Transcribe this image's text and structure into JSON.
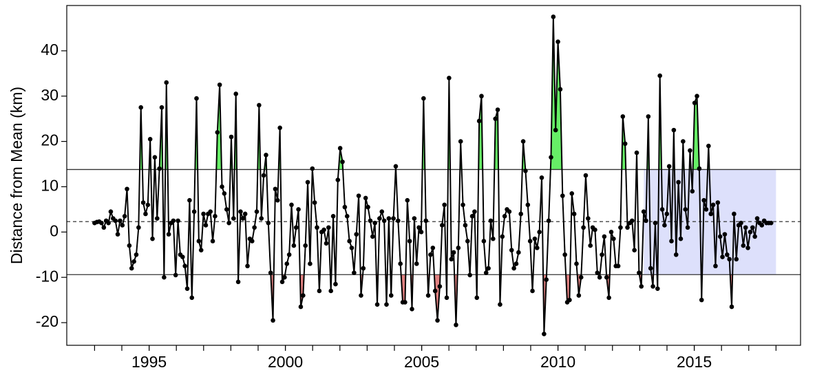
{
  "chart_data": {
    "type": "line",
    "ylabel": "Distance from Mean (km)",
    "xlim": [
      1991.98,
      2018.9
    ],
    "ylim": [
      -25,
      50
    ],
    "xticks": [
      1995,
      2000,
      2005,
      2010,
      2015
    ],
    "xminorticks": [
      1993,
      1994,
      1995,
      1996,
      1997,
      1998,
      1999,
      2000,
      2001,
      2002,
      2003,
      2004,
      2005,
      2006,
      2007,
      2008,
      2009,
      2010,
      2011,
      2012,
      2013,
      2014,
      2015,
      2016,
      2017,
      2018
    ],
    "yticks": [
      -20,
      -10,
      0,
      10,
      20,
      30,
      40
    ],
    "reference_lines": [
      {
        "value": 13.8,
        "style": "solid",
        "fill_beyond": "above",
        "fill_color": "#66ee66"
      },
      {
        "value": 2.3,
        "style": "dashed"
      },
      {
        "value": -9.4,
        "style": "solid",
        "fill_beyond": "below",
        "fill_color": "#e08080"
      }
    ],
    "shaded_region": {
      "x": [
        2013.15,
        2018.0
      ],
      "y": [
        -9.4,
        13.8
      ],
      "color": "#dde0fb"
    },
    "x": [
      1993,
      1993.085,
      1993.17,
      1993.255,
      1993.34,
      1993.425,
      1993.51,
      1993.595,
      1993.68,
      1993.765,
      1993.85,
      1993.935,
      1994.02,
      1994.105,
      1994.19,
      1994.275,
      1994.36,
      1994.445,
      1994.53,
      1994.615,
      1994.7,
      1994.785,
      1994.87,
      1994.955,
      1995.04,
      1995.125,
      1995.21,
      1995.295,
      1995.38,
      1995.465,
      1995.55,
      1995.635,
      1995.72,
      1995.805,
      1995.89,
      1995.975,
      1996.06,
      1996.145,
      1996.23,
      1996.315,
      1996.4,
      1996.485,
      1996.57,
      1996.655,
      1996.74,
      1996.825,
      1996.91,
      1996.995,
      1997.08,
      1997.165,
      1997.25,
      1997.335,
      1997.42,
      1997.505,
      1997.59,
      1997.675,
      1997.76,
      1997.845,
      1997.93,
      1998.015,
      1998.1,
      1998.185,
      1998.27,
      1998.355,
      1998.44,
      1998.525,
      1998.61,
      1998.695,
      1998.78,
      1998.865,
      1998.95,
      1999.035,
      1999.12,
      1999.205,
      1999.29,
      1999.375,
      1999.46,
      1999.545,
      1999.63,
      1999.715,
      1999.8,
      1999.885,
      1999.97,
      2000.055,
      2000.14,
      2000.225,
      2000.31,
      2000.395,
      2000.48,
      2000.565,
      2000.65,
      2000.735,
      2000.82,
      2000.905,
      2000.99,
      2001.075,
      2001.16,
      2001.245,
      2001.33,
      2001.415,
      2001.5,
      2001.585,
      2001.67,
      2001.755,
      2001.84,
      2001.925,
      2002.01,
      2002.095,
      2002.18,
      2002.265,
      2002.35,
      2002.435,
      2002.52,
      2002.605,
      2002.69,
      2002.775,
      2002.86,
      2002.945,
      2003.03,
      2003.115,
      2003.2,
      2003.285,
      2003.37,
      2003.455,
      2003.54,
      2003.625,
      2003.71,
      2003.795,
      2003.88,
      2003.965,
      2004.05,
      2004.135,
      2004.22,
      2004.305,
      2004.39,
      2004.475,
      2004.56,
      2004.645,
      2004.73,
      2004.815,
      2004.9,
      2004.985,
      2005.07,
      2005.155,
      2005.24,
      2005.325,
      2005.41,
      2005.495,
      2005.58,
      2005.665,
      2005.75,
      2005.835,
      2005.92,
      2006.005,
      2006.09,
      2006.175,
      2006.26,
      2006.345,
      2006.43,
      2006.515,
      2006.6,
      2006.685,
      2006.77,
      2006.855,
      2006.94,
      2007.025,
      2007.11,
      2007.195,
      2007.28,
      2007.365,
      2007.45,
      2007.535,
      2007.62,
      2007.705,
      2007.79,
      2007.875,
      2007.96,
      2008.045,
      2008.13,
      2008.215,
      2008.3,
      2008.385,
      2008.47,
      2008.555,
      2008.64,
      2008.725,
      2008.81,
      2008.895,
      2008.98,
      2009.065,
      2009.15,
      2009.235,
      2009.32,
      2009.405,
      2009.49,
      2009.575,
      2009.66,
      2009.745,
      2009.83,
      2009.915,
      2010,
      2010.085,
      2010.17,
      2010.255,
      2010.34,
      2010.425,
      2010.51,
      2010.595,
      2010.68,
      2010.765,
      2010.85,
      2010.935,
      2011.02,
      2011.105,
      2011.19,
      2011.275,
      2011.36,
      2011.445,
      2011.53,
      2011.615,
      2011.7,
      2011.785,
      2011.87,
      2011.955,
      2012.04,
      2012.125,
      2012.21,
      2012.295,
      2012.38,
      2012.465,
      2012.55,
      2012.635,
      2012.72,
      2012.805,
      2012.89,
      2012.975,
      2013.06,
      2013.145,
      2013.23,
      2013.315,
      2013.4,
      2013.485,
      2013.57,
      2013.655,
      2013.74,
      2013.825,
      2013.91,
      2013.995,
      2014.08,
      2014.165,
      2014.25,
      2014.335,
      2014.42,
      2014.505,
      2014.59,
      2014.675,
      2014.76,
      2014.845,
      2014.93,
      2015.015,
      2015.1,
      2015.185,
      2015.27,
      2015.355,
      2015.44,
      2015.525,
      2015.61,
      2015.695,
      2015.78,
      2015.865,
      2015.95,
      2016.035,
      2016.12,
      2016.205,
      2016.29,
      2016.375,
      2016.46,
      2016.545,
      2016.63,
      2016.715,
      2016.8,
      2016.885,
      2016.97,
      2017.055,
      2017.14,
      2017.225,
      2017.31,
      2017.395,
      2017.48,
      2017.565,
      2017.65,
      2017.735,
      2017.82
    ],
    "series": [
      {
        "color": "#000000",
        "values": [
          2,
          2.2,
          2.3,
          2,
          1,
          2.5,
          2,
          4.5,
          3,
          2.5,
          -0.5,
          2.5,
          1.5,
          3.5,
          9.5,
          -3,
          -8,
          -6.5,
          -5,
          1,
          27.5,
          6.5,
          4,
          6,
          20.5,
          -1.5,
          16.5,
          3,
          14,
          27.5,
          -10,
          33,
          -0.5,
          2,
          2.5,
          -9.5,
          2.5,
          -5,
          -5.5,
          -7.5,
          -12.5,
          7,
          -14.5,
          4.5,
          29.5,
          -2,
          -4,
          4,
          1.5,
          4,
          4.5,
          -2,
          3.5,
          22,
          32.5,
          10,
          8.5,
          5,
          2,
          21,
          3,
          30.5,
          -11,
          4.5,
          3,
          4,
          -7.5,
          -1.5,
          -2,
          1,
          4.5,
          28,
          3,
          12.5,
          17,
          2,
          -9,
          -19.5,
          9.5,
          7,
          23,
          -11,
          -10,
          -7,
          -5,
          6,
          -3,
          1,
          5,
          -16.5,
          -14,
          -3,
          11,
          -7,
          14,
          6.5,
          1,
          -13,
          0,
          0.5,
          -2.5,
          1,
          -13,
          3.5,
          -11.5,
          11.5,
          18.5,
          15.5,
          5.5,
          3.5,
          -2,
          -3.5,
          -9,
          -0.5,
          8,
          -14,
          -8,
          7.5,
          5.5,
          2.5,
          -1,
          2,
          -16,
          3,
          4.5,
          2.5,
          -16,
          3,
          -14,
          3,
          14.5,
          2.5,
          -7,
          -15.5,
          -15.5,
          7,
          -2,
          -17,
          3,
          -7,
          1,
          0,
          29.5,
          2.5,
          -14,
          -5,
          -3.5,
          -13,
          -19.5,
          -12,
          1.5,
          6,
          -14.5,
          34,
          -6,
          -4.5,
          -20.5,
          -3.5,
          20,
          6,
          1.5,
          -2,
          -9.5,
          3.5,
          4.5,
          -14.5,
          24.5,
          30,
          -2,
          -9,
          -8,
          2.5,
          -1.5,
          25,
          27,
          -16,
          -1,
          3.5,
          5,
          4.5,
          -4,
          -8,
          -7,
          -4.5,
          4,
          20,
          13.5,
          6,
          -2,
          -13,
          -1.5,
          -3.5,
          0,
          12,
          -22.5,
          -10.5,
          2.5,
          16.5,
          47.5,
          22.5,
          42,
          31.5,
          8,
          -5,
          -15.5,
          -15,
          8.5,
          4,
          -7,
          -14,
          -10,
          1,
          12.5,
          3,
          -3,
          1,
          0.5,
          -9,
          -10,
          -5,
          -1,
          -10,
          -14.5,
          0,
          -1.5,
          -7.5,
          -7.5,
          1,
          25.5,
          19.5,
          1,
          2,
          2.5,
          -4,
          17.5,
          -9,
          -12,
          4.5,
          2.5,
          25.5,
          -8,
          -12,
          2,
          -12.5,
          34.5,
          5,
          1.5,
          4,
          14.5,
          -2,
          22.5,
          -5,
          11,
          -1.5,
          20,
          5,
          1,
          18,
          9,
          28.5,
          30,
          14,
          -15,
          7,
          5,
          19,
          4,
          6,
          -7.5,
          6.5,
          -1,
          -5.5,
          -0.5,
          -5,
          -6,
          -16.5,
          4,
          -6,
          1.5,
          2,
          -3,
          1,
          -3.5,
          0,
          1,
          -1,
          3,
          2,
          1.5,
          2.5,
          2,
          2,
          2
        ]
      }
    ]
  }
}
